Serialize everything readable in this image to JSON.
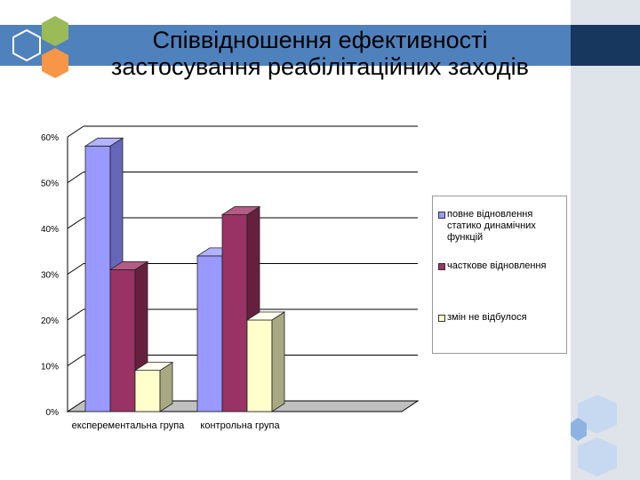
{
  "slide": {
    "title_line1": "Співвідношення ефективності",
    "title_line2": "застосування реабілітаційних заходів"
  },
  "colors": {
    "title_band": "#4f81bd",
    "title_band_dark": "#17375e",
    "hex_green": "#9bbb59",
    "hex_blue": "#4f81bd",
    "hex_orange": "#f79646",
    "hex_light": "#c6d9f1"
  },
  "chart_data": {
    "type": "bar",
    "categories": [
      "експерементальна група",
      "контрольна група"
    ],
    "series": [
      {
        "name": "повне відновлення статико динамічних функцій",
        "values": [
          58,
          34
        ],
        "color": "#9999ff",
        "side": "#6666bb",
        "top": "#b3b3ff"
      },
      {
        "name": "часткове відновлення",
        "values": [
          31,
          43
        ],
        "color": "#993366",
        "side": "#66203f",
        "top": "#b35c85"
      },
      {
        "name": "змін не відбулося",
        "values": [
          9,
          20
        ],
        "color": "#ffffcc",
        "side": "#a8a883",
        "top": "#fffff0"
      }
    ],
    "yticks": [
      "0%",
      "10%",
      "20%",
      "30%",
      "40%",
      "50%",
      "60%"
    ],
    "ylim": [
      0,
      60
    ],
    "grid": true,
    "legend": "right",
    "three_d": true
  }
}
